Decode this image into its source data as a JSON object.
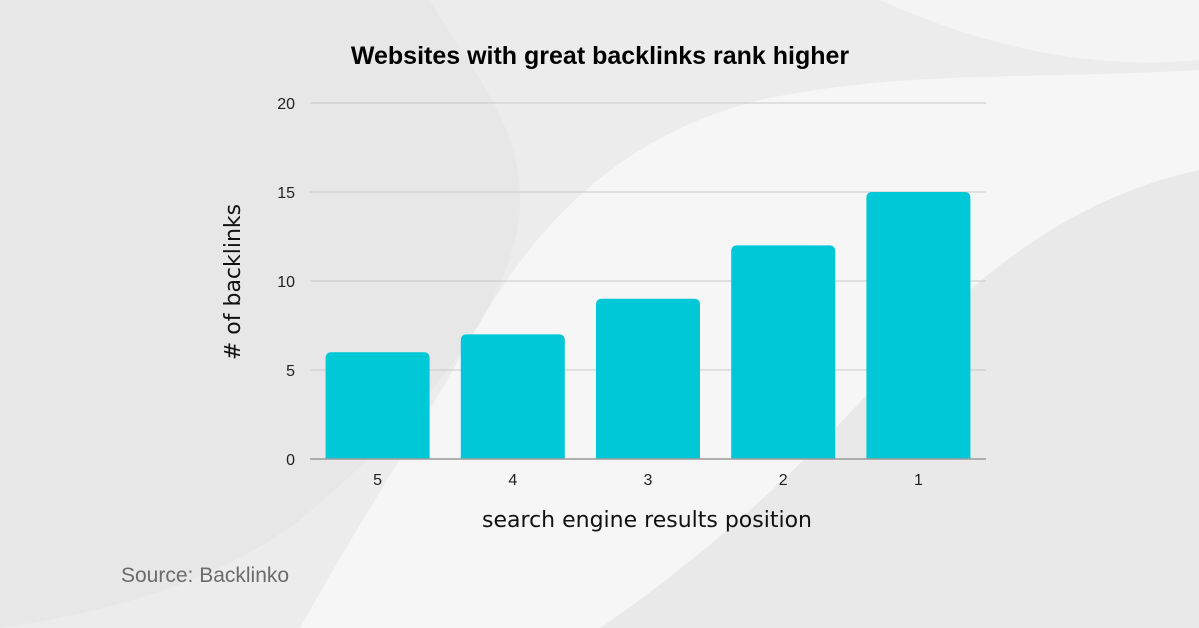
{
  "source_note": "Source: Backlinko",
  "chart_data": {
    "type": "bar",
    "title": "Websites with great backlinks rank higher",
    "xlabel": "search engine results position",
    "ylabel": "# of backlinks",
    "categories": [
      "5",
      "4",
      "3",
      "2",
      "1"
    ],
    "values": [
      6,
      7,
      9,
      12,
      15
    ],
    "yticks": [
      "0",
      "5",
      "10",
      "15",
      "20"
    ],
    "ylim": [
      0,
      20
    ],
    "grid": true,
    "colors": {
      "bar": "#00c8d7",
      "grid": "#c8c8c8",
      "background": "#ececec"
    }
  }
}
